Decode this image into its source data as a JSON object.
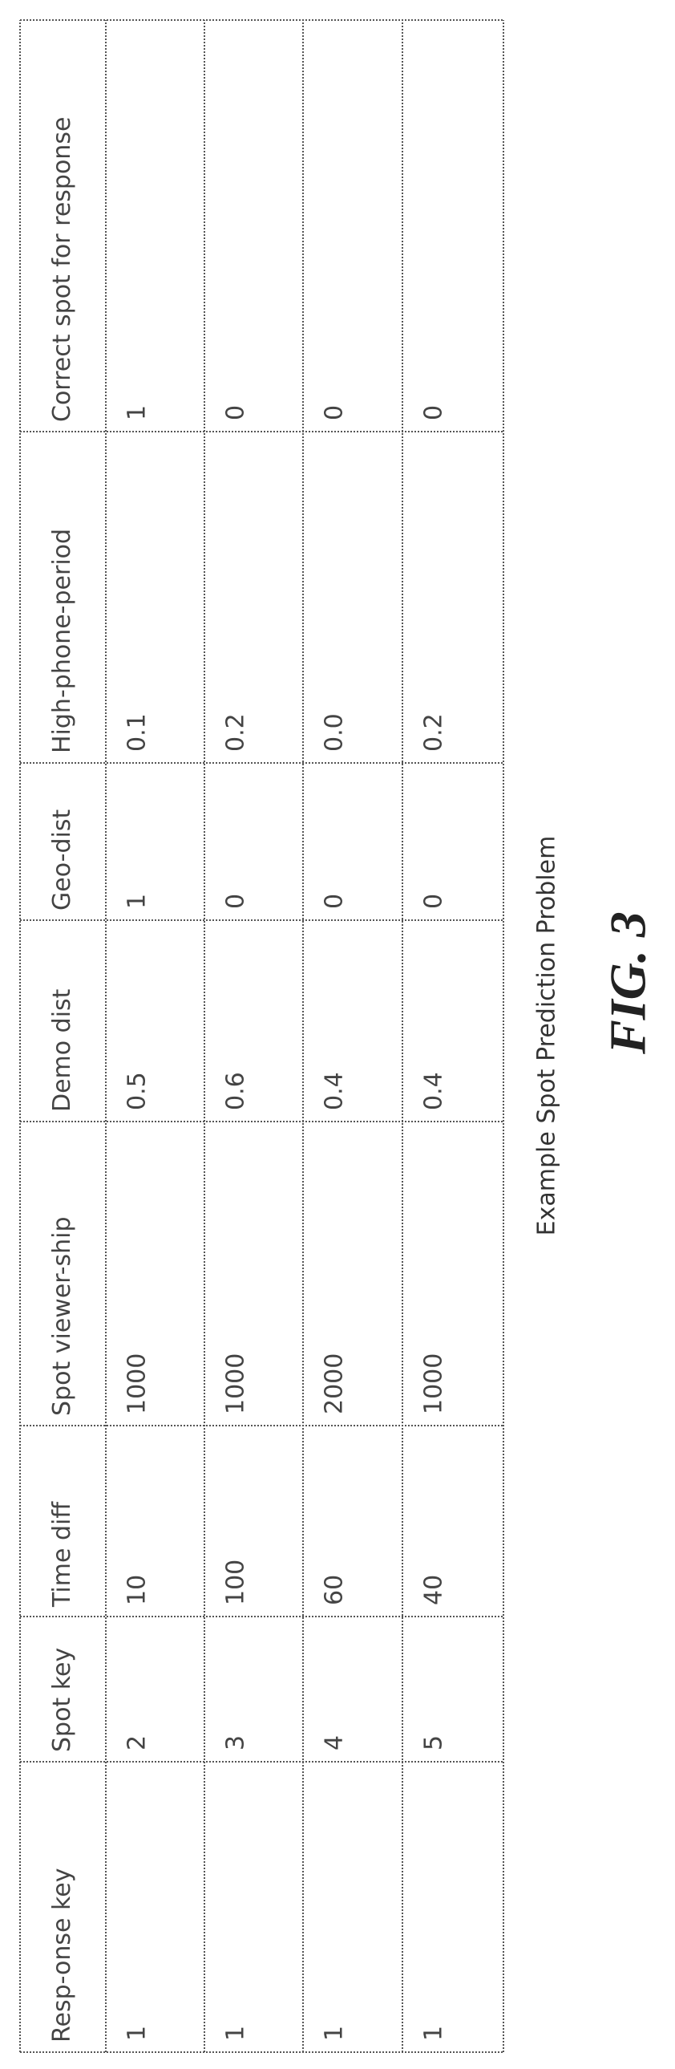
{
  "table": {
    "headers": [
      "Resp-onse key",
      "Spot key",
      "Time  diff",
      "Spot viewer-ship",
      "Demo dist",
      "Geo-dist",
      "High-phone-period",
      "Correct spot for response"
    ],
    "rows": [
      [
        "1",
        "2",
        "10",
        "1000",
        "0.5",
        "1",
        "0.1",
        "1"
      ],
      [
        "1",
        "3",
        "100",
        "1000",
        "0.6",
        "0",
        "0.2",
        "0"
      ],
      [
        "1",
        "4",
        "60",
        "2000",
        "0.4",
        "0",
        "0.0",
        "0"
      ],
      [
        "1",
        "5",
        "40",
        "1000",
        "0.4",
        "0",
        "0.2",
        "0"
      ]
    ]
  },
  "caption": "Example Spot Prediction Problem",
  "figure_label": "FIG. 3"
}
